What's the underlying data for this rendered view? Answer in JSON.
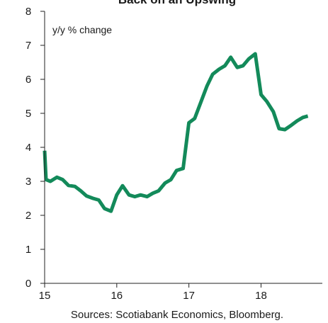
{
  "chart_data": {
    "type": "line",
    "title": "Back on an Upswing",
    "ylabel": "y/y % change",
    "xlabel": "",
    "source": "Sources: Scotiabank Economics, Bloomberg.",
    "xlim": [
      15,
      18.85
    ],
    "ylim": [
      0,
      8
    ],
    "x_ticks": [
      15,
      16,
      17,
      18
    ],
    "x_tick_labels": [
      "15",
      "16",
      "17",
      "18"
    ],
    "y_ticks": [
      0,
      1,
      2,
      3,
      4,
      5,
      6,
      7,
      8
    ],
    "y_tick_labels": [
      "0",
      "1",
      "2",
      "3",
      "4",
      "5",
      "6",
      "7",
      "8"
    ],
    "grid": false,
    "series": [
      {
        "color": "#138a5a",
        "x": [
          15.0,
          15.02,
          15.08,
          15.17,
          15.25,
          15.33,
          15.42,
          15.5,
          15.58,
          15.67,
          15.75,
          15.83,
          15.92,
          16.0,
          16.08,
          16.17,
          16.25,
          16.33,
          16.42,
          16.5,
          16.58,
          16.67,
          16.75,
          16.83,
          16.92,
          17.0,
          17.08,
          17.17,
          17.25,
          17.33,
          17.42,
          17.5,
          17.58,
          17.67,
          17.75,
          17.83,
          17.92,
          18.0,
          18.08,
          18.17,
          18.25,
          18.33,
          18.42,
          18.5,
          18.58,
          18.65
        ],
        "y": [
          3.9,
          3.05,
          3.0,
          3.12,
          3.05,
          2.88,
          2.85,
          2.72,
          2.57,
          2.5,
          2.45,
          2.2,
          2.12,
          2.6,
          2.87,
          2.6,
          2.55,
          2.6,
          2.55,
          2.65,
          2.72,
          2.95,
          3.05,
          3.32,
          3.38,
          4.72,
          4.85,
          5.35,
          5.8,
          6.15,
          6.3,
          6.4,
          6.65,
          6.35,
          6.4,
          6.6,
          6.75,
          5.55,
          5.35,
          5.05,
          4.55,
          4.52,
          4.65,
          4.78,
          4.88,
          4.92
        ]
      }
    ]
  }
}
